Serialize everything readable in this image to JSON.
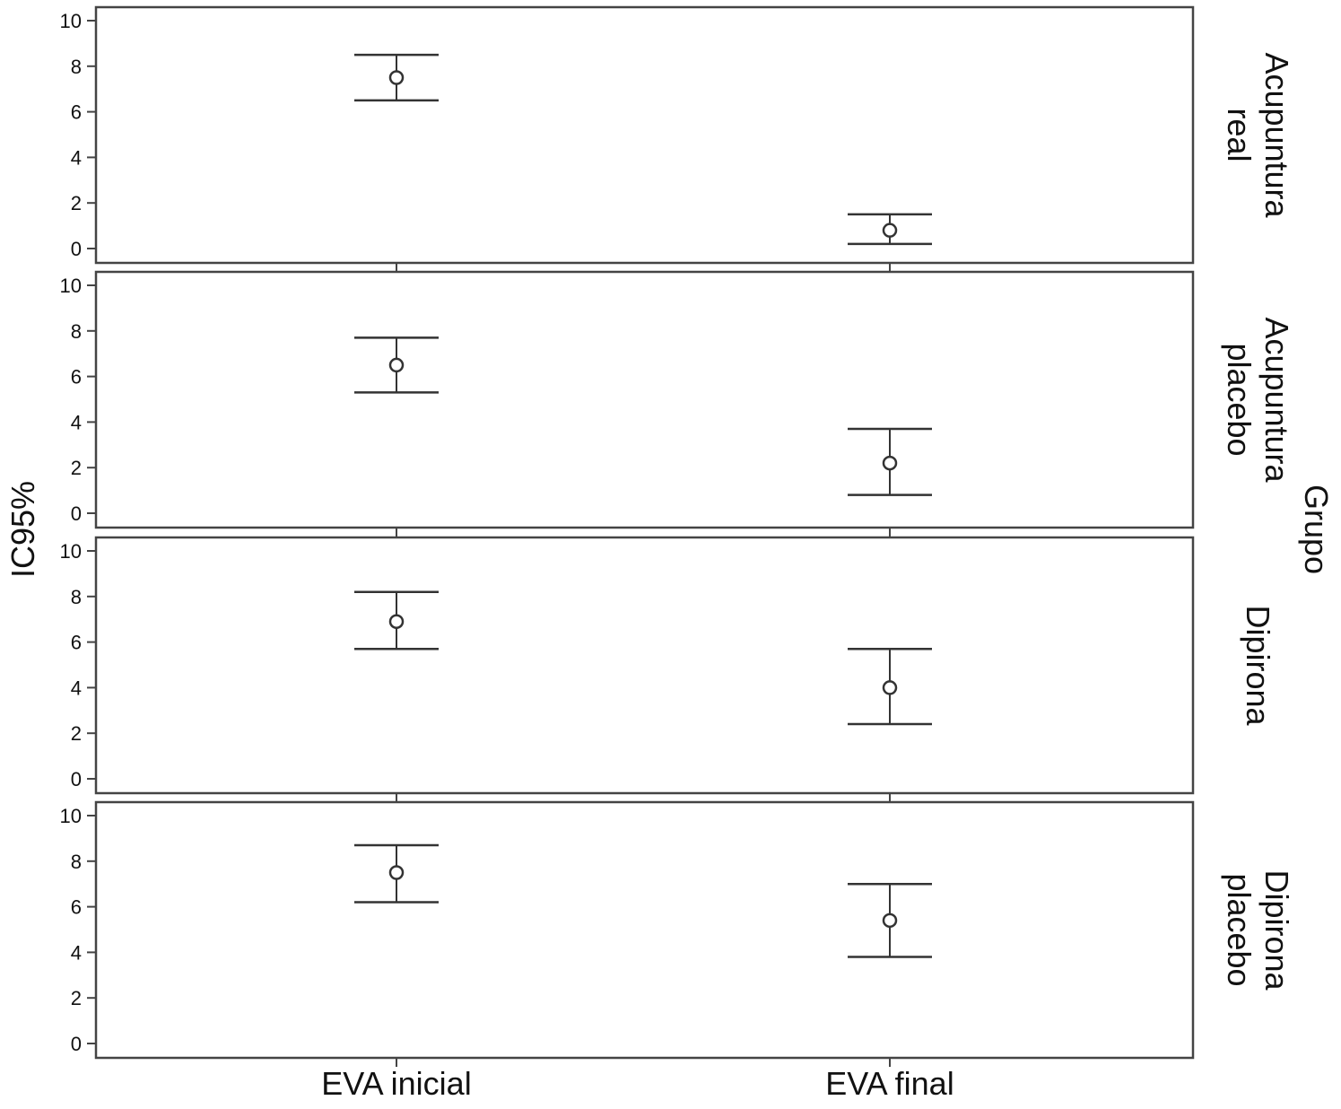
{
  "chart_data": {
    "type": "errorbar",
    "ylabel": "IC95%",
    "facet_title": "Grupo",
    "categories": [
      "EVA inicial",
      "EVA final"
    ],
    "ylim": [
      0,
      10
    ],
    "yticks": [
      0,
      2,
      4,
      6,
      8,
      10
    ],
    "grid": false,
    "panels": [
      {
        "label": [
          "Acupuntura",
          "real"
        ],
        "mean": [
          7.5,
          0.8
        ],
        "lower": [
          6.5,
          0.2
        ],
        "upper": [
          8.5,
          1.5
        ]
      },
      {
        "label": [
          "Acupuntura",
          "placebo"
        ],
        "mean": [
          6.5,
          2.2
        ],
        "lower": [
          5.3,
          0.8
        ],
        "upper": [
          7.7,
          3.7
        ]
      },
      {
        "label": [
          "Dipirona"
        ],
        "mean": [
          6.9,
          4.0
        ],
        "lower": [
          5.7,
          2.4
        ],
        "upper": [
          8.2,
          5.7
        ]
      },
      {
        "label": [
          "Dipirona",
          "placebo"
        ],
        "mean": [
          7.5,
          5.4
        ],
        "lower": [
          6.2,
          3.8
        ],
        "upper": [
          8.7,
          7.0
        ]
      }
    ],
    "colors": {
      "marks": "#333333",
      "frame": "#444444"
    }
  }
}
